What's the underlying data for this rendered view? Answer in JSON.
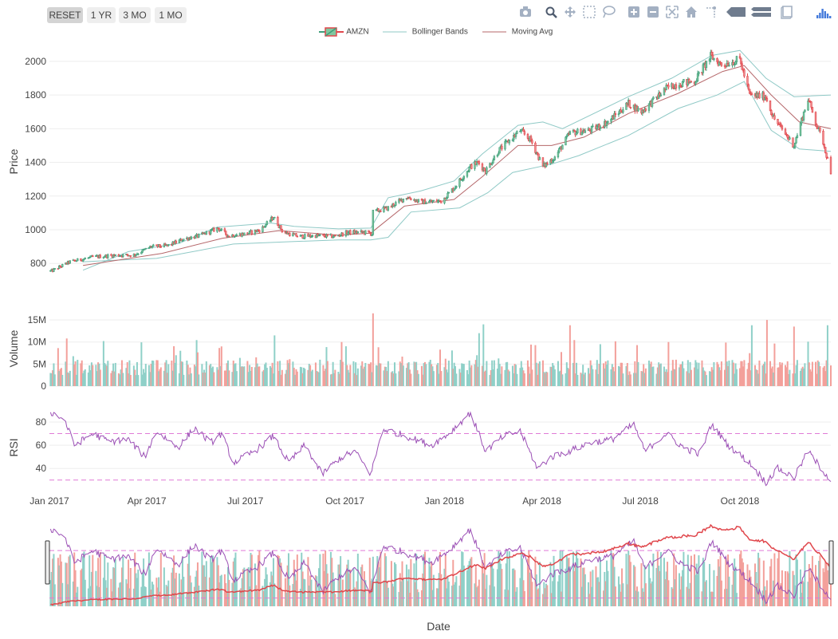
{
  "range_buttons": [
    {
      "label": "RESET",
      "active": true
    },
    {
      "label": "1 YR",
      "active": false
    },
    {
      "label": "3 MO",
      "active": false
    },
    {
      "label": "1 MO",
      "active": false
    }
  ],
  "modebar_icons": [
    "camera-icon",
    "zoom-icon",
    "pan-icon",
    "box-select-icon",
    "lasso-icon",
    "zoom-in-icon",
    "zoom-out-icon",
    "autoscale-icon",
    "home-icon",
    "spike-lines-icon",
    "hover-closest-icon",
    "hover-compare-icon",
    "toggle-hover-icon",
    "plotly-logo-icon"
  ],
  "legend": [
    {
      "label": "AMZN",
      "kind": "candle"
    },
    {
      "label": "Bollinger Bands",
      "kind": "line",
      "color": "#8fc9c6"
    },
    {
      "label": "Moving Avg",
      "kind": "line",
      "color": "#b5676a"
    }
  ],
  "colors": {
    "increasing": "#3f9e7a",
    "decreasing": "#e0474c",
    "vol_up": "#8fd0c8",
    "vol_down": "#f3a09b",
    "rsi": "#9b4fb5",
    "rsi_ref": "#e07ad6",
    "bands": "#8fc9c6",
    "ma": "#b5676a",
    "grid": "#eeeeee"
  },
  "chart_data": [
    {
      "type": "candlestick",
      "name": "AMZN",
      "ylabel": "Price",
      "yticks": [
        800,
        1000,
        1200,
        1400,
        1600,
        1800,
        2000
      ],
      "ylim": [
        730,
        2080
      ],
      "xlim": [
        "2017-01-01",
        "2018-12-24"
      ],
      "points": [
        [
          "2017-01-03",
          755
        ],
        [
          "2017-01-20",
          810
        ],
        [
          "2017-02-10",
          838
        ],
        [
          "2017-03-01",
          848
        ],
        [
          "2017-03-20",
          850
        ],
        [
          "2017-04-05",
          900
        ],
        [
          "2017-04-20",
          905
        ],
        [
          "2017-05-05",
          945
        ],
        [
          "2017-05-20",
          965
        ],
        [
          "2017-06-06",
          1010
        ],
        [
          "2017-06-15",
          965
        ],
        [
          "2017-06-30",
          975
        ],
        [
          "2017-07-15",
          1000
        ],
        [
          "2017-07-27",
          1075
        ],
        [
          "2017-08-05",
          985
        ],
        [
          "2017-08-20",
          960
        ],
        [
          "2017-09-05",
          965
        ],
        [
          "2017-09-20",
          960
        ],
        [
          "2017-10-05",
          985
        ],
        [
          "2017-10-20",
          985
        ],
        [
          "2017-10-26",
          975
        ],
        [
          "2017-10-27",
          1105
        ],
        [
          "2017-11-10",
          1130
        ],
        [
          "2017-11-27",
          1195
        ],
        [
          "2017-12-10",
          1165
        ],
        [
          "2017-12-29",
          1170
        ],
        [
          "2018-01-10",
          1250
        ],
        [
          "2018-01-25",
          1375
        ],
        [
          "2018-02-01",
          1400
        ],
        [
          "2018-02-08",
          1350
        ],
        [
          "2018-02-20",
          1470
        ],
        [
          "2018-03-12",
          1590
        ],
        [
          "2018-03-22",
          1530
        ],
        [
          "2018-04-02",
          1375
        ],
        [
          "2018-04-13",
          1430
        ],
        [
          "2018-04-27",
          1575
        ],
        [
          "2018-05-15",
          1590
        ],
        [
          "2018-06-01",
          1640
        ],
        [
          "2018-06-20",
          1750
        ],
        [
          "2018-07-02",
          1700
        ],
        [
          "2018-07-25",
          1840
        ],
        [
          "2018-08-06",
          1870
        ],
        [
          "2018-08-20",
          1880
        ],
        [
          "2018-09-04",
          2030
        ],
        [
          "2018-09-14",
          1980
        ],
        [
          "2018-10-01",
          2010
        ],
        [
          "2018-10-10",
          1800
        ],
        [
          "2018-10-25",
          1790
        ],
        [
          "2018-11-01",
          1665
        ],
        [
          "2018-11-20",
          1500
        ],
        [
          "2018-12-03",
          1780
        ],
        [
          "2018-12-10",
          1640
        ],
        [
          "2018-12-17",
          1520
        ],
        [
          "2018-12-24",
          1345
        ]
      ],
      "upper_band": [
        [
          "2017-02-01",
          760
        ],
        [
          "2017-03-15",
          870
        ],
        [
          "2017-05-01",
          920
        ],
        [
          "2017-06-05",
          1015
        ],
        [
          "2017-07-25",
          1040
        ],
        [
          "2017-08-15",
          1020
        ],
        [
          "2017-09-25",
          1005
        ],
        [
          "2017-10-25",
          1010
        ],
        [
          "2017-11-10",
          1190
        ],
        [
          "2017-12-10",
          1230
        ],
        [
          "2018-01-10",
          1290
        ],
        [
          "2018-02-05",
          1450
        ],
        [
          "2018-03-10",
          1620
        ],
        [
          "2018-04-02",
          1640
        ],
        [
          "2018-04-20",
          1600
        ],
        [
          "2018-06-20",
          1790
        ],
        [
          "2018-07-30",
          1900
        ],
        [
          "2018-09-05",
          2035
        ],
        [
          "2018-10-01",
          2065
        ],
        [
          "2018-10-25",
          1900
        ],
        [
          "2018-11-20",
          1790
        ],
        [
          "2018-12-24",
          1800
        ]
      ],
      "lower_band": [
        [
          "2017-02-01",
          810
        ],
        [
          "2017-04-10",
          830
        ],
        [
          "2017-06-20",
          915
        ],
        [
          "2017-08-15",
          930
        ],
        [
          "2017-09-25",
          940
        ],
        [
          "2017-10-25",
          940
        ],
        [
          "2017-11-10",
          955
        ],
        [
          "2017-12-01",
          1105
        ],
        [
          "2018-01-15",
          1130
        ],
        [
          "2018-02-10",
          1220
        ],
        [
          "2018-03-05",
          1340
        ],
        [
          "2018-04-10",
          1390
        ],
        [
          "2018-05-05",
          1440
        ],
        [
          "2018-06-20",
          1560
        ],
        [
          "2018-08-05",
          1720
        ],
        [
          "2018-09-10",
          1800
        ],
        [
          "2018-10-05",
          1880
        ],
        [
          "2018-10-30",
          1590
        ],
        [
          "2018-11-25",
          1480
        ],
        [
          "2018-12-24",
          1465
        ]
      ],
      "moving_avg": [
        [
          "2017-02-01",
          788
        ],
        [
          "2017-04-15",
          860
        ],
        [
          "2017-06-10",
          950
        ],
        [
          "2017-08-01",
          995
        ],
        [
          "2017-09-25",
          968
        ],
        [
          "2017-10-25",
          980
        ],
        [
          "2017-11-25",
          1140
        ],
        [
          "2018-01-10",
          1180
        ],
        [
          "2018-02-05",
          1315
        ],
        [
          "2018-03-10",
          1500
        ],
        [
          "2018-04-10",
          1500
        ],
        [
          "2018-05-10",
          1550
        ],
        [
          "2018-06-20",
          1690
        ],
        [
          "2018-08-05",
          1810
        ],
        [
          "2018-09-15",
          1940
        ],
        [
          "2018-10-05",
          1975
        ],
        [
          "2018-10-30",
          1800
        ],
        [
          "2018-11-25",
          1640
        ],
        [
          "2018-12-24",
          1600
        ]
      ]
    },
    {
      "type": "bar",
      "name": "Volume",
      "ylabel": "Volume",
      "yticks": [
        0,
        5000000,
        10000000,
        15000000
      ],
      "ytick_labels": [
        "0",
        "5M",
        "10M",
        "15M"
      ],
      "ylim": [
        0,
        17000000
      ],
      "spikes": [
        [
          "2017-01-17",
          10800000,
          "down"
        ],
        [
          "2017-02-03",
          3800000,
          "up"
        ],
        [
          "2017-04-28",
          7000000,
          "up"
        ],
        [
          "2017-07-28",
          11500000,
          "up"
        ],
        [
          "2017-06-09",
          9000000,
          "down"
        ],
        [
          "2017-09-28",
          10000000,
          "down"
        ],
        [
          "2017-10-27",
          16500000,
          "down"
        ],
        [
          "2018-02-02",
          12000000,
          "up"
        ],
        [
          "2018-02-06",
          14000000,
          "up"
        ],
        [
          "2018-04-27",
          13800000,
          "down"
        ],
        [
          "2018-05-25",
          9500000,
          "up"
        ],
        [
          "2018-07-27",
          10000000,
          "down"
        ],
        [
          "2018-10-12",
          13800000,
          "up"
        ],
        [
          "2018-10-26",
          15000000,
          "down"
        ],
        [
          "2018-11-20",
          13500000,
          "down"
        ],
        [
          "2018-12-21",
          13800000,
          "up"
        ]
      ]
    },
    {
      "type": "line",
      "name": "RSI",
      "ylabel": "RSI",
      "yticks": [
        40,
        60,
        80
      ],
      "ylim": [
        23,
        93
      ],
      "reference_lines": [
        30,
        70
      ],
      "x_ticks": [
        "Jan 2017",
        "Apr 2017",
        "Jul 2017",
        "Oct 2017",
        "Jan 2018",
        "Apr 2018",
        "Jul 2018",
        "Oct 2018"
      ],
      "x_tick_dates": [
        "2017-01-01",
        "2017-04-01",
        "2017-07-01",
        "2017-10-01",
        "2018-01-01",
        "2018-04-01",
        "2018-07-01",
        "2018-10-01"
      ],
      "points": [
        [
          "2017-01-03",
          88
        ],
        [
          "2017-01-15",
          82
        ],
        [
          "2017-01-24",
          60
        ],
        [
          "2017-02-10",
          70
        ],
        [
          "2017-02-25",
          63
        ],
        [
          "2017-03-15",
          65
        ],
        [
          "2017-03-30",
          50
        ],
        [
          "2017-04-10",
          72
        ],
        [
          "2017-04-30",
          58
        ],
        [
          "2017-05-15",
          75
        ],
        [
          "2017-05-30",
          62
        ],
        [
          "2017-06-09",
          70
        ],
        [
          "2017-06-20",
          45
        ],
        [
          "2017-07-10",
          55
        ],
        [
          "2017-07-27",
          68
        ],
        [
          "2017-08-10",
          45
        ],
        [
          "2017-08-25",
          60
        ],
        [
          "2017-09-10",
          35
        ],
        [
          "2017-09-25",
          48
        ],
        [
          "2017-10-10",
          55
        ],
        [
          "2017-10-25",
          35
        ],
        [
          "2017-11-05",
          74
        ],
        [
          "2017-11-20",
          70
        ],
        [
          "2017-12-05",
          65
        ],
        [
          "2017-12-20",
          60
        ],
        [
          "2018-01-05",
          70
        ],
        [
          "2018-01-25",
          88
        ],
        [
          "2018-02-08",
          55
        ],
        [
          "2018-02-25",
          68
        ],
        [
          "2018-03-12",
          72
        ],
        [
          "2018-03-28",
          40
        ],
        [
          "2018-04-10",
          50
        ],
        [
          "2018-04-27",
          55
        ],
        [
          "2018-05-15",
          62
        ],
        [
          "2018-06-05",
          65
        ],
        [
          "2018-06-25",
          78
        ],
        [
          "2018-07-05",
          55
        ],
        [
          "2018-07-25",
          70
        ],
        [
          "2018-08-10",
          58
        ],
        [
          "2018-08-25",
          52
        ],
        [
          "2018-09-05",
          78
        ],
        [
          "2018-09-20",
          60
        ],
        [
          "2018-10-10",
          45
        ],
        [
          "2018-10-25",
          28
        ],
        [
          "2018-11-05",
          40
        ],
        [
          "2018-11-20",
          32
        ],
        [
          "2018-12-03",
          55
        ],
        [
          "2018-12-15",
          40
        ],
        [
          "2018-12-24",
          30
        ]
      ]
    }
  ],
  "xlabel": "Date"
}
